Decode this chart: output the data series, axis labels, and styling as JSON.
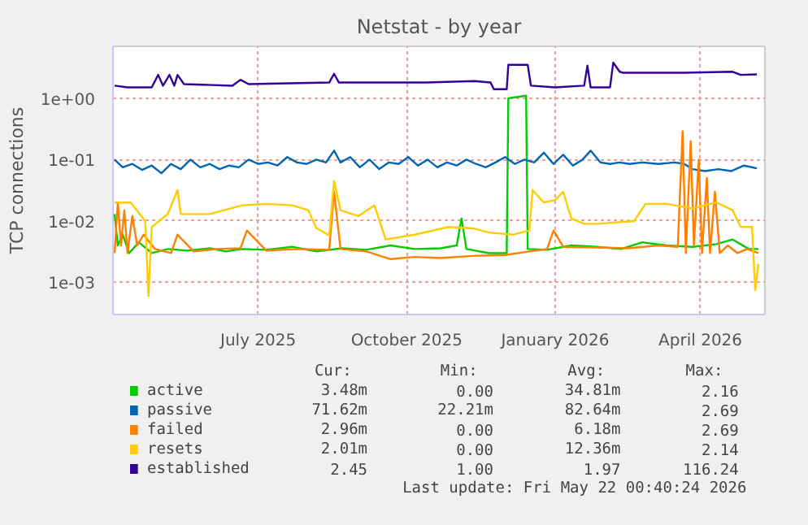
{
  "chart_data": {
    "type": "line",
    "title": "Netstat - by year",
    "ylabel": "TCP connections",
    "log": "y",
    "grid": true,
    "legend": "bottom",
    "line_style": "solid",
    "marker": "none",
    "xlim": [
      "2025-04-16",
      "2026-05-25"
    ],
    "xticks": [
      {
        "value": "2025-07-15",
        "label": "July 2025"
      },
      {
        "value": "2025-10-15",
        "label": "October 2025"
      },
      {
        "value": "2026-01-15",
        "label": "January 2026"
      },
      {
        "value": "2026-04-15",
        "label": "April 2026"
      }
    ],
    "ylim": [
      0.0003,
      7
    ],
    "yticks": [
      {
        "value": 0.001,
        "label": "1e-03"
      },
      {
        "value": 0.01,
        "label": "1e-02"
      },
      {
        "value": 0.1,
        "label": "1e-01"
      },
      {
        "value": 1,
        "label": "1e+00"
      }
    ],
    "series": [
      {
        "name": "active",
        "color": "#00cc00",
        "x": [
          "2025-04-17",
          "2025-04-19",
          "2025-04-22",
          "2025-04-26",
          "2025-05-02",
          "2025-05-10",
          "2025-05-20",
          "2025-06-01",
          "2025-06-15",
          "2025-06-25",
          "2025-07-05",
          "2025-07-20",
          "2025-08-05",
          "2025-08-20",
          "2025-09-05",
          "2025-09-20",
          "2025-10-05",
          "2025-10-20",
          "2025-11-05",
          "2025-11-15",
          "2025-11-18",
          "2025-11-21",
          "2025-12-05",
          "2025-12-16",
          "2025-12-17",
          "2025-12-28",
          "2025-12-29",
          "2026-01-10",
          "2026-01-25",
          "2026-02-10",
          "2026-02-25",
          "2026-03-10",
          "2026-03-25",
          "2026-04-10",
          "2026-04-25",
          "2026-05-05",
          "2026-05-15",
          "2026-05-21"
        ],
        "values": [
          0.013,
          0.004,
          0.006,
          0.003,
          0.0045,
          0.003,
          0.0035,
          0.0033,
          0.0036,
          0.0032,
          0.0035,
          0.0034,
          0.0038,
          0.0032,
          0.0036,
          0.0034,
          0.004,
          0.0035,
          0.0036,
          0.004,
          0.011,
          0.0035,
          0.003,
          0.003,
          1.0,
          1.1,
          0.0035,
          0.0034,
          0.004,
          0.0038,
          0.0035,
          0.0045,
          0.004,
          0.0038,
          0.0042,
          0.005,
          0.0035,
          0.0035
        ]
      },
      {
        "name": "passive",
        "color": "#0066b3",
        "x": [
          "2025-04-17",
          "2025-04-22",
          "2025-04-28",
          "2025-05-04",
          "2025-05-10",
          "2025-05-16",
          "2025-05-22",
          "2025-05-28",
          "2025-06-03",
          "2025-06-09",
          "2025-06-15",
          "2025-06-21",
          "2025-06-27",
          "2025-07-03",
          "2025-07-09",
          "2025-07-15",
          "2025-07-21",
          "2025-07-27",
          "2025-08-02",
          "2025-08-08",
          "2025-08-14",
          "2025-08-20",
          "2025-08-26",
          "2025-08-31",
          "2025-09-04",
          "2025-09-10",
          "2025-09-16",
          "2025-09-22",
          "2025-09-28",
          "2025-10-04",
          "2025-10-10",
          "2025-10-16",
          "2025-10-22",
          "2025-10-28",
          "2025-11-03",
          "2025-11-09",
          "2025-11-15",
          "2025-11-21",
          "2025-11-27",
          "2025-12-03",
          "2025-12-09",
          "2025-12-15",
          "2025-12-21",
          "2025-12-27",
          "2026-01-02",
          "2026-01-08",
          "2026-01-14",
          "2026-01-20",
          "2026-01-26",
          "2026-02-01",
          "2026-02-06",
          "2026-02-12",
          "2026-02-18",
          "2026-02-24",
          "2026-03-02",
          "2026-03-10",
          "2026-03-20",
          "2026-03-30",
          "2026-04-05",
          "2026-04-10",
          "2026-04-18",
          "2026-04-26",
          "2026-05-04",
          "2026-05-12",
          "2026-05-20"
        ],
        "values": [
          0.1,
          0.075,
          0.085,
          0.068,
          0.08,
          0.06,
          0.085,
          0.07,
          0.1,
          0.075,
          0.085,
          0.07,
          0.08,
          0.075,
          0.1,
          0.085,
          0.09,
          0.08,
          0.11,
          0.09,
          0.085,
          0.1,
          0.09,
          0.14,
          0.09,
          0.11,
          0.075,
          0.1,
          0.07,
          0.09,
          0.085,
          0.11,
          0.08,
          0.1,
          0.075,
          0.09,
          0.08,
          0.1,
          0.085,
          0.075,
          0.09,
          0.11,
          0.085,
          0.1,
          0.09,
          0.13,
          0.085,
          0.12,
          0.08,
          0.1,
          0.14,
          0.09,
          0.085,
          0.09,
          0.085,
          0.09,
          0.085,
          0.09,
          0.085,
          0.07,
          0.065,
          0.07,
          0.065,
          0.08,
          0.072
        ]
      },
      {
        "name": "failed",
        "color": "#ff8000",
        "x": [
          "2025-04-17",
          "2025-04-19",
          "2025-04-21",
          "2025-04-23",
          "2025-04-25",
          "2025-04-28",
          "2025-05-01",
          "2025-05-05",
          "2025-05-12",
          "2025-05-22",
          "2025-05-26",
          "2025-06-05",
          "2025-06-20",
          "2025-07-04",
          "2025-07-08",
          "2025-07-20",
          "2025-08-10",
          "2025-08-28",
          "2025-08-31",
          "2025-09-04",
          "2025-09-20",
          "2025-10-05",
          "2025-10-20",
          "2025-11-05",
          "2025-11-25",
          "2025-12-15",
          "2025-12-30",
          "2026-01-10",
          "2026-01-14",
          "2026-01-20",
          "2026-02-10",
          "2026-03-01",
          "2026-03-20",
          "2026-04-01",
          "2026-04-04",
          "2026-04-06",
          "2026-04-09",
          "2026-04-11",
          "2026-04-14",
          "2026-04-16",
          "2026-04-19",
          "2026-04-21",
          "2026-04-24",
          "2026-04-27",
          "2026-05-02",
          "2026-05-08",
          "2026-05-14",
          "2026-05-21"
        ],
        "values": [
          0.003,
          0.02,
          0.004,
          0.015,
          0.003,
          0.012,
          0.004,
          0.006,
          0.0035,
          0.003,
          0.006,
          0.0032,
          0.0035,
          0.0036,
          0.007,
          0.0033,
          0.0035,
          0.0034,
          0.03,
          0.0035,
          0.0032,
          0.0024,
          0.0026,
          0.0025,
          0.0027,
          0.0028,
          0.0032,
          0.0035,
          0.007,
          0.0038,
          0.0037,
          0.0036,
          0.004,
          0.0038,
          0.29,
          0.003,
          0.2,
          0.004,
          0.1,
          0.003,
          0.05,
          0.003,
          0.03,
          0.003,
          0.004,
          0.003,
          0.0035,
          0.003
        ]
      },
      {
        "name": "resets",
        "color": "#ffcc00",
        "x": [
          "2025-04-17",
          "2025-04-27",
          "2025-05-06",
          "2025-05-08",
          "2025-05-10",
          "2025-05-20",
          "2025-05-26",
          "2025-05-28",
          "2025-06-15",
          "2025-07-05",
          "2025-07-20",
          "2025-08-05",
          "2025-08-15",
          "2025-08-20",
          "2025-08-28",
          "2025-08-31",
          "2025-09-04",
          "2025-09-15",
          "2025-09-25",
          "2025-10-02",
          "2025-10-20",
          "2025-11-10",
          "2025-11-25",
          "2025-12-05",
          "2025-12-20",
          "2025-12-30",
          "2026-01-01",
          "2026-01-08",
          "2026-01-15",
          "2026-01-20",
          "2026-01-25",
          "2026-02-02",
          "2026-02-10",
          "2026-03-05",
          "2026-03-12",
          "2026-03-25",
          "2026-04-10",
          "2026-04-25",
          "2026-05-05",
          "2026-05-10",
          "2026-05-17",
          "2026-05-19",
          "2026-05-21"
        ],
        "values": [
          0.02,
          0.02,
          0.01,
          0.0006,
          0.008,
          0.013,
          0.032,
          0.013,
          0.013,
          0.018,
          0.019,
          0.018,
          0.015,
          0.0077,
          0.0058,
          0.045,
          0.015,
          0.012,
          0.018,
          0.005,
          0.006,
          0.008,
          0.0076,
          0.0065,
          0.006,
          0.007,
          0.032,
          0.02,
          0.022,
          0.03,
          0.011,
          0.009,
          0.009,
          0.01,
          0.019,
          0.019,
          0.016,
          0.02,
          0.015,
          0.008,
          0.008,
          0.00075,
          0.002
        ]
      },
      {
        "name": "established",
        "color": "#330099",
        "x": [
          "2025-04-17",
          "2025-04-25",
          "2025-05-10",
          "2025-05-14",
          "2025-05-17",
          "2025-05-21",
          "2025-05-24",
          "2025-05-26",
          "2025-05-30",
          "2025-06-29",
          "2025-07-04",
          "2025-07-09",
          "2025-08-28",
          "2025-08-31",
          "2025-09-03",
          "2025-10-27",
          "2025-11-26",
          "2025-12-06",
          "2025-12-08",
          "2025-12-16",
          "2025-12-17",
          "2025-12-29",
          "2025-12-31",
          "2026-01-15",
          "2026-02-02",
          "2026-02-04",
          "2026-02-06",
          "2026-02-18",
          "2026-02-20",
          "2026-02-24",
          "2026-02-26",
          "2026-04-05",
          "2026-05-05",
          "2026-05-10",
          "2026-05-20"
        ],
        "values": [
          1.6,
          1.5,
          1.5,
          2.4,
          1.6,
          2.4,
          1.6,
          2.4,
          1.7,
          1.6,
          2.0,
          1.7,
          1.8,
          2.5,
          1.8,
          1.8,
          1.9,
          1.8,
          1.4,
          1.4,
          3.5,
          3.5,
          1.6,
          1.5,
          1.6,
          3.4,
          1.5,
          1.5,
          3.8,
          2.7,
          2.6,
          2.6,
          2.7,
          2.4,
          2.45
        ]
      }
    ],
    "annotations": [
      "Cur:",
      "Min:",
      "Avg:",
      "Max:",
      "3.48m",
      "0.00",
      "34.81m",
      "2.16",
      "71.62m",
      "22.21m",
      "82.64m",
      "2.69",
      "2.96m",
      "0.00",
      "6.18m",
      "2.69",
      "2.01m",
      "0.00",
      "12.36m",
      "2.14",
      "2.45",
      "1.00",
      "1.97",
      "116.24",
      "Last update: Fri May 22 00:40:24 2026"
    ]
  }
}
